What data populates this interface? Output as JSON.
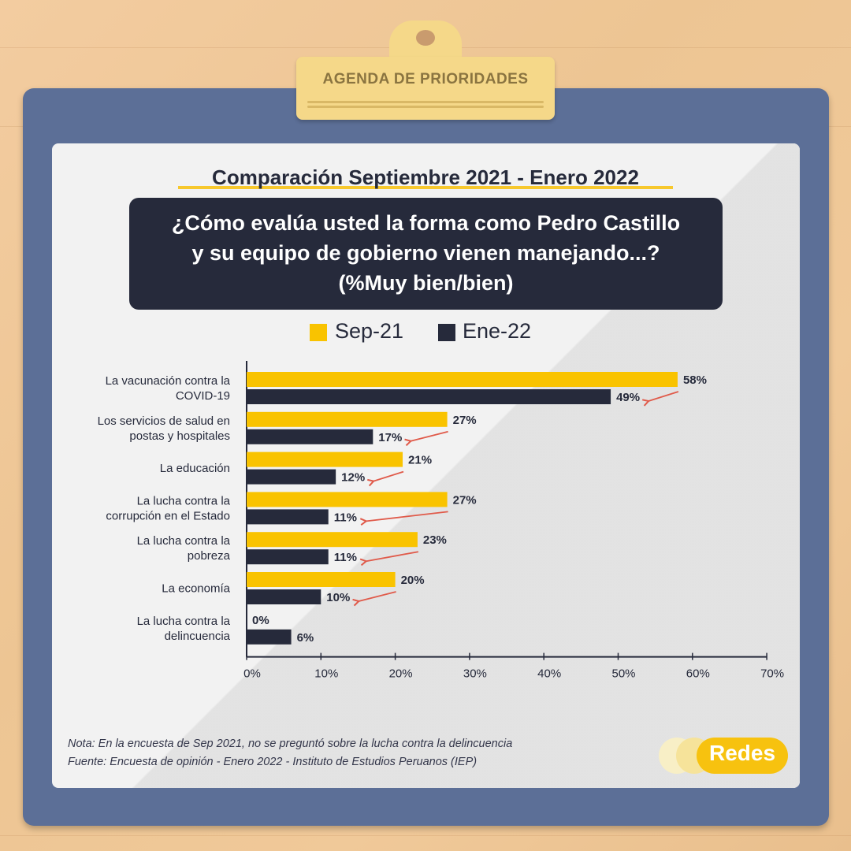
{
  "tag": "AGENDA DE PRIORIDADES",
  "subtitle": "Comparación Septiembre 2021 - Enero 2022",
  "question": {
    "line1": "¿Cómo evalúa usted la forma como Pedro Castillo",
    "line2": "y su equipo de gobierno vienen manejando...?",
    "line3": "(%Muy bien/bien)"
  },
  "colors": {
    "sep": "#f9c300",
    "ene": "#262a3b",
    "arrow": "#e05a4a",
    "board": "#5c6f97",
    "clip": "#f5d889"
  },
  "note": "Nota: En la encuesta de Sep 2021, no se preguntó sobre la lucha contra la delincuencia",
  "source": "Fuente: Encuesta de opinión - Enero 2022 - Instituto de Estudios Peruanos (IEP)",
  "logo": "Redes",
  "chart_data": {
    "type": "bar",
    "orientation": "horizontal",
    "categories": [
      [
        "La vacunación contra la",
        "COVID-19"
      ],
      [
        "Los servicios de salud en",
        "postas y hospitales"
      ],
      [
        "La educación"
      ],
      [
        "La lucha contra la",
        "corrupción en el Estado"
      ],
      [
        "La lucha contra la",
        "pobreza"
      ],
      [
        "La economía"
      ],
      [
        "La lucha contra la",
        "delincuencia"
      ]
    ],
    "series": [
      {
        "name": "Sep-21",
        "values": [
          58,
          27,
          21,
          27,
          23,
          20,
          0
        ],
        "labels": [
          "58%",
          "27%",
          "21%",
          "27%",
          "23%",
          "20%",
          "0%"
        ]
      },
      {
        "name": "Ene-22",
        "values": [
          49,
          17,
          12,
          11,
          11,
          10,
          6
        ],
        "labels": [
          "49%",
          "17%",
          "12%",
          "11%",
          "11%",
          "10%",
          "6%"
        ]
      }
    ],
    "xlim": [
      0,
      70
    ],
    "xticks": [
      "0%",
      "10%",
      "20%",
      "30%",
      "40%",
      "50%",
      "60%",
      "70%"
    ],
    "legend": "top-center",
    "arrows": "decrease from Sep-21 to Ene-22 for first six categories"
  }
}
